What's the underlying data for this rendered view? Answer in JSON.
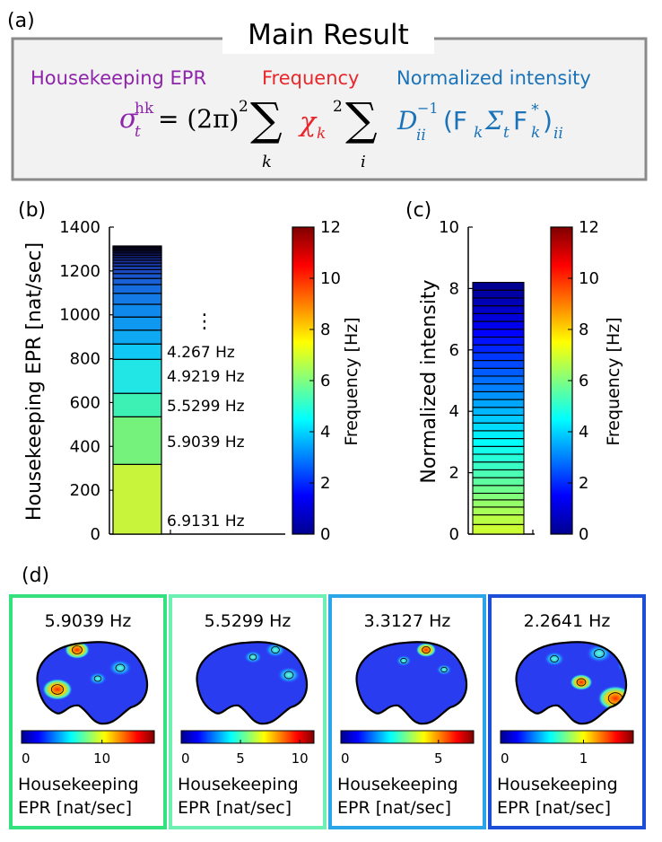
{
  "panel_a": {
    "label": "(a)",
    "title": "Main Result",
    "term_labels": {
      "housekeeping": "Housekeeping EPR",
      "frequency": "Frequency",
      "intensity": "Normalized intensity"
    },
    "colors": {
      "housekeeping": "#8e24aa",
      "frequency": "#e8262b",
      "intensity": "#1a73b8"
    },
    "formula": {
      "lhs_symbol": "σ",
      "lhs_sup": "hk",
      "lhs_sub": "t",
      "equals_part": "= (2π)",
      "square": "2",
      "sum1_sub": "k",
      "chi": "χ",
      "chi_sub": "k",
      "sum2_sub": "i",
      "d": "D",
      "d_sup": "−1",
      "d_sub": "ii",
      "open": "(F",
      "f_sub": "k",
      "sigma": "Σ",
      "sigma_sub": "t",
      "f2": "F",
      "f2_sup": "*",
      "close": ")",
      "close_sub": "ii"
    }
  },
  "panel_b": {
    "label": "(b)",
    "ylabel": "Housekeeping EPR [nat/sec]",
    "colorbar_label": "Frequency [Hz]",
    "ellipsis": "⋮",
    "freq_labels": [
      "4.267 Hz",
      "4.9219 Hz",
      "5.5299 Hz",
      "5.9039 Hz",
      "6.9131 Hz"
    ]
  },
  "panel_c": {
    "label": "(c)",
    "ylabel": "Normalized intensity",
    "colorbar_label": "Frequency [Hz]"
  },
  "panel_d": {
    "label": "(d)",
    "cards": [
      {
        "freq": "5.9039 Hz",
        "colorbar_ticks": [
          "0",
          "10"
        ],
        "caption1": "Housekeeping",
        "caption2": "EPR [nat/sec]",
        "border": "#35e07e"
      },
      {
        "freq": "5.5299 Hz",
        "colorbar_ticks": [
          "0",
          "5",
          "10"
        ],
        "caption1": "Housekeeping",
        "caption2": "EPR [nat/sec]",
        "border": "#6ef0b2"
      },
      {
        "freq": "3.3127 Hz",
        "colorbar_ticks": [
          "0",
          "5"
        ],
        "caption1": "Housekeeping",
        "caption2": "EPR [nat/sec]",
        "border": "#2aa6e8"
      },
      {
        "freq": "2.2641 Hz",
        "colorbar_ticks": [
          "0",
          "1"
        ],
        "caption1": "Housekeeping",
        "caption2": "EPR [nat/sec]",
        "border": "#1c4ed8"
      }
    ]
  },
  "chart_data": [
    {
      "type": "bar",
      "panel": "(b)",
      "stacked": true,
      "ylabel": "Housekeeping EPR [nat/sec]",
      "ylim": [
        0,
        1400
      ],
      "yticks": [
        0,
        200,
        400,
        600,
        800,
        1000,
        1200,
        1400
      ],
      "colorbar": {
        "label": "Frequency [Hz]",
        "range": [
          0,
          12
        ],
        "ticks": [
          0,
          2,
          4,
          6,
          8,
          10,
          12
        ]
      },
      "segments": [
        {
          "freq": 6.9131,
          "value": 318,
          "color": "#c8f53c"
        },
        {
          "freq": 5.9039,
          "value": 217,
          "color": "#74f27c"
        },
        {
          "freq": 5.5299,
          "value": 107,
          "color": "#3df0b4"
        },
        {
          "freq": 4.9219,
          "value": 155,
          "color": "#22e6e6"
        },
        {
          "freq": 4.267,
          "value": 70,
          "color": "#10c8f5"
        },
        {
          "value": 63,
          "color": "#0fa9f3"
        },
        {
          "value": 60,
          "color": "#0f98f0"
        },
        {
          "value": 58,
          "color": "#1089ec"
        },
        {
          "value": 50,
          "color": "#137ae6"
        },
        {
          "value": 40,
          "color": "#156cde"
        },
        {
          "value": 28,
          "color": "#1860d6"
        },
        {
          "value": 22,
          "color": "#1a56cd"
        },
        {
          "value": 18,
          "color": "#1b4bc2"
        },
        {
          "value": 16,
          "color": "#1b42b6"
        },
        {
          "value": 14,
          "color": "#1a39a9"
        },
        {
          "value": 13,
          "color": "#19319b"
        },
        {
          "value": 12,
          "color": "#172a8d"
        },
        {
          "value": 11,
          "color": "#15237f"
        },
        {
          "value": 10,
          "color": "#131c70"
        },
        {
          "value": 9,
          "color": "#111660"
        },
        {
          "value": 8,
          "color": "#0f1150"
        },
        {
          "value": 8,
          "color": "#0d0d42"
        },
        {
          "value": 7,
          "color": "#0b0a36"
        }
      ],
      "total": 1310
    },
    {
      "type": "bar",
      "panel": "(c)",
      "stacked": true,
      "ylabel": "Normalized intensity",
      "ylim": [
        0,
        10
      ],
      "yticks": [
        0,
        2,
        4,
        6,
        8,
        10
      ],
      "colorbar": {
        "label": "Frequency [Hz]",
        "range": [
          0,
          12
        ],
        "ticks": [
          0,
          2,
          4,
          6,
          8,
          10,
          12
        ]
      },
      "total": 8.2,
      "segment_count": 32
    }
  ]
}
